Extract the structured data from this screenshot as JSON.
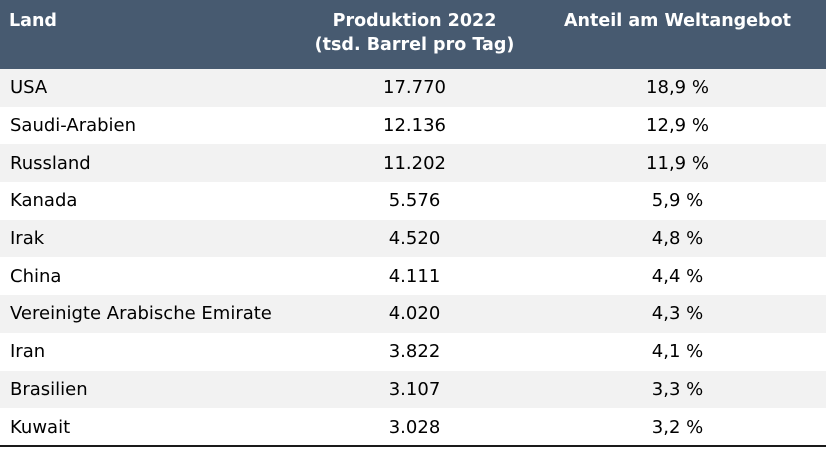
{
  "chart_data": {
    "type": "table",
    "columns": [
      {
        "label_lines": [
          "Land"
        ]
      },
      {
        "label_lines": [
          "Produktion 2022",
          "(tsd. Barrel pro Tag)"
        ]
      },
      {
        "label_lines": [
          "Anteil am Weltangebot"
        ]
      }
    ],
    "rows": [
      {
        "country": "USA",
        "production": "17.770",
        "share": "18,9 %"
      },
      {
        "country": "Saudi-Arabien",
        "production": "12.136",
        "share": "12,9 %"
      },
      {
        "country": "Russland",
        "production": "11.202",
        "share": "11,9 %"
      },
      {
        "country": "Kanada",
        "production": "5.576",
        "share": "5,9 %"
      },
      {
        "country": "Irak",
        "production": "4.520",
        "share": "4,8 %"
      },
      {
        "country": "China",
        "production": "4.111",
        "share": "4,4 %"
      },
      {
        "country": "Vereinigte Arabische Emirate",
        "production": "4.020",
        "share": "4,3 %"
      },
      {
        "country": "Iran",
        "production": "3.822",
        "share": "4,1 %"
      },
      {
        "country": "Brasilien",
        "production": "3.107",
        "share": "3,3 %"
      },
      {
        "country": "Kuwait",
        "production": "3.028",
        "share": "3,2 %"
      }
    ]
  },
  "colors": {
    "header_background": "#475a70",
    "header_text": "#ffffff",
    "row_stripe": "#f2f2f2",
    "row_plain": "#ffffff",
    "bottom_rule": "#1a1a1a"
  }
}
